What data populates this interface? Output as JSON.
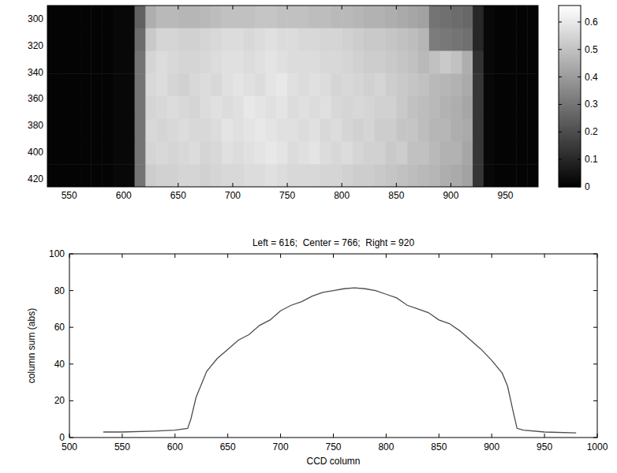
{
  "chart_data": [
    {
      "type": "heatmap",
      "x_edges": [
        530,
        540,
        550,
        560,
        570,
        580,
        590,
        600,
        610,
        620,
        630,
        640,
        650,
        660,
        670,
        680,
        690,
        700,
        710,
        720,
        730,
        740,
        750,
        760,
        770,
        780,
        790,
        800,
        810,
        820,
        830,
        840,
        850,
        860,
        870,
        880,
        890,
        900,
        910,
        920,
        930,
        940,
        950,
        960,
        970,
        980
      ],
      "y_edges": [
        290,
        307,
        324,
        341,
        358,
        375,
        392,
        409,
        426
      ],
      "cells": [
        [
          0.01,
          0.01,
          0.01,
          0.01,
          0.01,
          0.01,
          0.02,
          0.02,
          0.25,
          0.45,
          0.48,
          0.48,
          0.47,
          0.47,
          0.48,
          0.49,
          0.5,
          0.5,
          0.5,
          0.51,
          0.51,
          0.5,
          0.5,
          0.5,
          0.49,
          0.49,
          0.48,
          0.48,
          0.47,
          0.46,
          0.46,
          0.45,
          0.44,
          0.43,
          0.42,
          0.3,
          0.29,
          0.28,
          0.27,
          0.1,
          0.02,
          0.01,
          0.01,
          0.01,
          0.01
        ],
        [
          0.01,
          0.01,
          0.01,
          0.01,
          0.01,
          0.01,
          0.02,
          0.02,
          0.28,
          0.52,
          0.55,
          0.55,
          0.54,
          0.54,
          0.55,
          0.56,
          0.57,
          0.57,
          0.56,
          0.57,
          0.58,
          0.57,
          0.57,
          0.56,
          0.56,
          0.55,
          0.55,
          0.54,
          0.53,
          0.52,
          0.52,
          0.51,
          0.5,
          0.49,
          0.47,
          0.32,
          0.31,
          0.3,
          0.29,
          0.1,
          0.02,
          0.01,
          0.01,
          0.01,
          0.01
        ],
        [
          0.01,
          0.01,
          0.01,
          0.01,
          0.01,
          0.01,
          0.02,
          0.02,
          0.3,
          0.55,
          0.57,
          0.56,
          0.55,
          0.55,
          0.56,
          0.57,
          0.58,
          0.58,
          0.57,
          0.58,
          0.59,
          0.58,
          0.57,
          0.57,
          0.57,
          0.56,
          0.56,
          0.55,
          0.54,
          0.53,
          0.53,
          0.52,
          0.51,
          0.5,
          0.48,
          0.5,
          0.52,
          0.5,
          0.45,
          0.13,
          0.02,
          0.01,
          0.01,
          0.01,
          0.01
        ],
        [
          0.01,
          0.01,
          0.01,
          0.01,
          0.01,
          0.01,
          0.02,
          0.02,
          0.3,
          0.56,
          0.57,
          0.55,
          0.54,
          0.56,
          0.57,
          0.56,
          0.58,
          0.59,
          0.58,
          0.57,
          0.59,
          0.6,
          0.58,
          0.57,
          0.58,
          0.57,
          0.55,
          0.56,
          0.55,
          0.54,
          0.55,
          0.53,
          0.52,
          0.51,
          0.5,
          0.48,
          0.47,
          0.46,
          0.44,
          0.14,
          0.02,
          0.01,
          0.01,
          0.01,
          0.01
        ],
        [
          0.01,
          0.01,
          0.01,
          0.01,
          0.01,
          0.01,
          0.02,
          0.02,
          0.3,
          0.55,
          0.56,
          0.57,
          0.56,
          0.55,
          0.57,
          0.58,
          0.57,
          0.58,
          0.6,
          0.59,
          0.58,
          0.59,
          0.57,
          0.58,
          0.57,
          0.58,
          0.56,
          0.55,
          0.56,
          0.55,
          0.54,
          0.54,
          0.52,
          0.5,
          0.49,
          0.48,
          0.46,
          0.45,
          0.43,
          0.14,
          0.02,
          0.01,
          0.01,
          0.01,
          0.01
        ],
        [
          0.01,
          0.01,
          0.01,
          0.01,
          0.01,
          0.01,
          0.02,
          0.02,
          0.3,
          0.56,
          0.55,
          0.56,
          0.57,
          0.56,
          0.56,
          0.57,
          0.59,
          0.58,
          0.59,
          0.6,
          0.59,
          0.58,
          0.58,
          0.57,
          0.58,
          0.56,
          0.57,
          0.55,
          0.54,
          0.55,
          0.53,
          0.53,
          0.51,
          0.51,
          0.49,
          0.47,
          0.47,
          0.45,
          0.44,
          0.14,
          0.02,
          0.01,
          0.01,
          0.01,
          0.01
        ],
        [
          0.01,
          0.01,
          0.01,
          0.01,
          0.01,
          0.01,
          0.02,
          0.02,
          0.3,
          0.55,
          0.56,
          0.55,
          0.56,
          0.57,
          0.55,
          0.56,
          0.58,
          0.57,
          0.58,
          0.59,
          0.6,
          0.59,
          0.57,
          0.58,
          0.59,
          0.57,
          0.56,
          0.57,
          0.55,
          0.54,
          0.54,
          0.52,
          0.53,
          0.5,
          0.5,
          0.48,
          0.46,
          0.46,
          0.43,
          0.14,
          0.02,
          0.01,
          0.01,
          0.01,
          0.01
        ],
        [
          0.01,
          0.01,
          0.01,
          0.01,
          0.01,
          0.01,
          0.02,
          0.02,
          0.3,
          0.53,
          0.54,
          0.54,
          0.55,
          0.55,
          0.54,
          0.55,
          0.56,
          0.56,
          0.57,
          0.57,
          0.58,
          0.57,
          0.56,
          0.56,
          0.56,
          0.55,
          0.55,
          0.54,
          0.53,
          0.53,
          0.52,
          0.51,
          0.5,
          0.49,
          0.48,
          0.47,
          0.45,
          0.44,
          0.42,
          0.14,
          0.02,
          0.01,
          0.01,
          0.01,
          0.01
        ]
      ],
      "xlim": [
        530,
        980
      ],
      "ylim": [
        290,
        426
      ],
      "xticks": [
        550,
        600,
        650,
        700,
        750,
        800,
        850,
        900,
        950
      ],
      "yticks": [
        300,
        320,
        340,
        360,
        380,
        400,
        420
      ],
      "colorbar": {
        "range": [
          0,
          0.66
        ],
        "ticks": [
          0,
          0.1,
          0.2,
          0.3,
          0.4,
          0.5,
          0.6
        ]
      }
    },
    {
      "type": "line",
      "title": "Left = 616;  Center = 766;  Right = 920",
      "x_label": "CCD column",
      "y_label": "column sum (abs)",
      "x": [
        532,
        550,
        580,
        600,
        612,
        615,
        620,
        630,
        640,
        650,
        660,
        670,
        680,
        690,
        700,
        710,
        720,
        730,
        740,
        750,
        760,
        770,
        780,
        790,
        800,
        810,
        820,
        830,
        840,
        850,
        860,
        870,
        880,
        890,
        900,
        910,
        915,
        920,
        924,
        930,
        950,
        980
      ],
      "values": [
        3,
        3,
        3.5,
        4,
        5,
        10,
        22,
        36,
        43,
        48,
        53,
        56,
        61,
        64,
        69,
        72,
        74,
        77,
        79,
        80,
        81,
        81.5,
        81,
        80,
        78,
        76,
        72,
        70,
        68,
        64,
        62,
        58,
        53,
        48,
        42,
        35,
        28,
        15,
        5,
        4,
        3,
        2.5
      ],
      "color": "#4d4d4d",
      "xlim": [
        500,
        1000
      ],
      "ylim": [
        0,
        100
      ],
      "xticks": [
        500,
        550,
        600,
        650,
        700,
        750,
        800,
        850,
        900,
        950,
        1000
      ],
      "yticks": [
        0,
        20,
        40,
        60,
        80,
        100
      ],
      "grid": false
    }
  ]
}
